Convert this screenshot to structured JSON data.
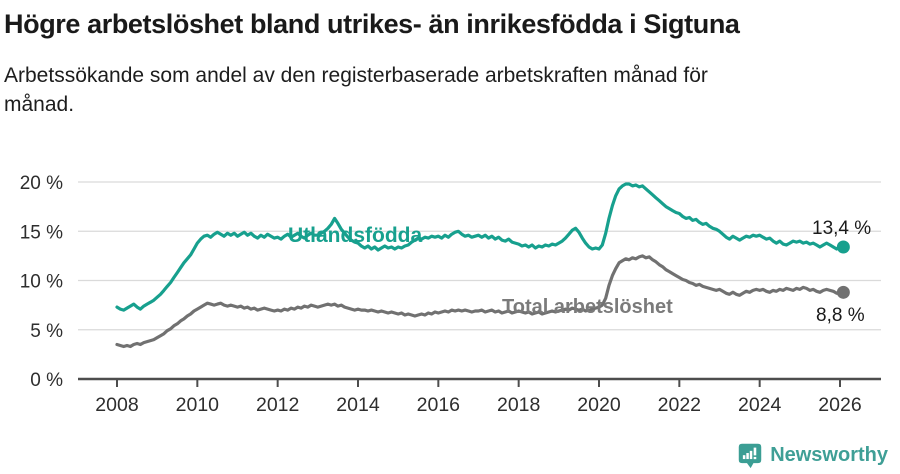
{
  "header": {
    "title": "Högre arbetslöshet bland utrikes- än inrikesfödda i Sigtuna",
    "subtitle": "Arbetssökande som andel av den registerbaserade arbetskraften månad för\nmånad."
  },
  "chart_data": {
    "type": "line",
    "title": "Högre arbetslöshet bland utrikes- än inrikesfödda i Sigtuna",
    "x_unit": "month",
    "x_start": {
      "year": 2008,
      "month": 1
    },
    "x_end": {
      "year": 2026,
      "month": 2
    },
    "x_tick_years": [
      2008,
      2010,
      2012,
      2014,
      2016,
      2018,
      2020,
      2022,
      2024,
      2026
    ],
    "x_tick_labels": [
      "2008",
      "2010",
      "2012",
      "2014",
      "2016",
      "2018",
      "2020",
      "2022",
      "2024",
      "2026"
    ],
    "y_tick_values": [
      0,
      5,
      10,
      15,
      20
    ],
    "y_tick_labels": [
      "0 %",
      "5 %",
      "10 %",
      "15 %",
      "20 %"
    ],
    "ylim": [
      0,
      21
    ],
    "grid": "horizontal",
    "legend_position": "inline-labels",
    "colors": {
      "axis": "#4d4d4d",
      "gridline": "#dadada",
      "tick_text": "#2e2e2e",
      "end_label_text": "#1a1a1a"
    },
    "series": [
      {
        "name": "Total arbetslöshet",
        "color": "#717171",
        "end_label": "8,8 %",
        "end_value": 8.8,
        "values": [
          3.5,
          3.4,
          3.3,
          3.4,
          3.3,
          3.5,
          3.6,
          3.5,
          3.7,
          3.8,
          3.9,
          4.0,
          4.2,
          4.4,
          4.6,
          4.9,
          5.1,
          5.4,
          5.6,
          5.9,
          6.1,
          6.4,
          6.6,
          6.9,
          7.1,
          7.3,
          7.5,
          7.7,
          7.6,
          7.5,
          7.6,
          7.7,
          7.5,
          7.4,
          7.5,
          7.4,
          7.3,
          7.4,
          7.2,
          7.3,
          7.1,
          7.2,
          7.0,
          7.1,
          7.2,
          7.1,
          7.0,
          6.9,
          7.0,
          6.9,
          7.1,
          7.0,
          7.2,
          7.1,
          7.3,
          7.2,
          7.4,
          7.3,
          7.5,
          7.4,
          7.3,
          7.4,
          7.5,
          7.6,
          7.5,
          7.6,
          7.4,
          7.5,
          7.3,
          7.2,
          7.1,
          7.0,
          7.1,
          7.0,
          7.0,
          6.9,
          7.0,
          6.9,
          6.8,
          6.9,
          6.8,
          6.7,
          6.8,
          6.7,
          6.6,
          6.7,
          6.5,
          6.6,
          6.5,
          6.4,
          6.5,
          6.6,
          6.5,
          6.7,
          6.6,
          6.8,
          6.7,
          6.8,
          6.9,
          6.8,
          7.0,
          6.9,
          7.0,
          6.9,
          7.0,
          6.9,
          6.8,
          6.9,
          6.9,
          7.0,
          6.8,
          6.9,
          7.0,
          6.8,
          6.9,
          6.7,
          6.8,
          6.9,
          6.7,
          6.8,
          6.9,
          6.8,
          6.7,
          6.8,
          6.6,
          6.7,
          6.8,
          6.6,
          6.7,
          6.8,
          6.9,
          6.8,
          6.9,
          7.0,
          7.1,
          7.0,
          7.2,
          7.1,
          7.0,
          7.1,
          6.9,
          7.0,
          7.1,
          7.2,
          7.3,
          7.5,
          8.2,
          9.5,
          10.5,
          11.2,
          11.8,
          12.0,
          12.2,
          12.1,
          12.3,
          12.2,
          12.4,
          12.5,
          12.3,
          12.4,
          12.1,
          11.9,
          11.6,
          11.4,
          11.1,
          10.9,
          10.7,
          10.5,
          10.3,
          10.1,
          10.0,
          9.8,
          9.7,
          9.5,
          9.6,
          9.4,
          9.3,
          9.2,
          9.1,
          9.0,
          9.1,
          8.9,
          8.7,
          8.6,
          8.8,
          8.6,
          8.5,
          8.7,
          8.9,
          8.8,
          9.0,
          9.1,
          9.0,
          9.1,
          8.9,
          8.8,
          9.0,
          8.9,
          9.1,
          9.0,
          9.2,
          9.1,
          9.0,
          9.2,
          9.1,
          9.3,
          9.2,
          9.0,
          9.1,
          8.9,
          8.8,
          9.0,
          9.1,
          9.0,
          8.9,
          8.7,
          8.8,
          8.8
        ]
      },
      {
        "name": "Utlandsfödda",
        "color": "#17a08e",
        "end_label": "13,4 %",
        "end_value": 13.4,
        "values": [
          7.3,
          7.1,
          7.0,
          7.2,
          7.4,
          7.6,
          7.3,
          7.1,
          7.4,
          7.6,
          7.8,
          8.0,
          8.3,
          8.6,
          9.0,
          9.4,
          9.8,
          10.3,
          10.8,
          11.3,
          11.8,
          12.2,
          12.6,
          13.2,
          13.8,
          14.2,
          14.5,
          14.6,
          14.4,
          14.7,
          14.9,
          14.7,
          14.5,
          14.8,
          14.6,
          14.8,
          14.5,
          14.7,
          14.9,
          14.6,
          14.8,
          14.5,
          14.3,
          14.6,
          14.4,
          14.7,
          14.5,
          14.3,
          14.4,
          14.2,
          14.5,
          14.7,
          14.4,
          14.6,
          14.8,
          14.5,
          14.3,
          14.6,
          14.8,
          14.6,
          14.6,
          14.8,
          15.0,
          15.3,
          15.7,
          16.3,
          15.8,
          15.2,
          14.8,
          14.4,
          14.1,
          13.9,
          13.8,
          13.5,
          13.3,
          13.5,
          13.2,
          13.4,
          13.1,
          13.3,
          13.5,
          13.3,
          13.4,
          13.2,
          13.4,
          13.3,
          13.5,
          13.6,
          13.9,
          14.1,
          14.3,
          14.2,
          14.4,
          14.3,
          14.5,
          14.4,
          14.5,
          14.3,
          14.6,
          14.4,
          14.7,
          14.9,
          15.0,
          14.7,
          14.5,
          14.6,
          14.4,
          14.5,
          14.6,
          14.4,
          14.6,
          14.3,
          14.5,
          14.2,
          14.4,
          14.1,
          14.0,
          14.2,
          13.9,
          13.8,
          13.7,
          13.5,
          13.6,
          13.4,
          13.6,
          13.3,
          13.5,
          13.4,
          13.6,
          13.5,
          13.7,
          13.6,
          13.8,
          14.0,
          14.3,
          14.7,
          15.1,
          15.3,
          14.9,
          14.3,
          13.8,
          13.4,
          13.2,
          13.3,
          13.2,
          13.6,
          14.8,
          16.3,
          17.6,
          18.6,
          19.3,
          19.6,
          19.8,
          19.8,
          19.6,
          19.7,
          19.5,
          19.6,
          19.3,
          19.0,
          18.7,
          18.4,
          18.1,
          17.8,
          17.5,
          17.3,
          17.1,
          16.9,
          16.8,
          16.5,
          16.3,
          16.4,
          16.1,
          16.2,
          15.9,
          15.7,
          15.8,
          15.5,
          15.3,
          15.2,
          15.0,
          14.7,
          14.4,
          14.2,
          14.5,
          14.3,
          14.1,
          14.3,
          14.5,
          14.4,
          14.6,
          14.5,
          14.6,
          14.4,
          14.2,
          14.3,
          14.0,
          13.8,
          14.0,
          13.7,
          13.6,
          13.8,
          14.0,
          13.9,
          14.0,
          13.8,
          13.9,
          13.7,
          13.8,
          13.6,
          13.4,
          13.6,
          13.8,
          13.6,
          13.4,
          13.2,
          13.5,
          13.4
        ]
      }
    ]
  },
  "footer": {
    "brand": "Newsworthy",
    "brand_color": "#3f9f96",
    "logo_icon": "bar-chart-speech-bubble"
  }
}
